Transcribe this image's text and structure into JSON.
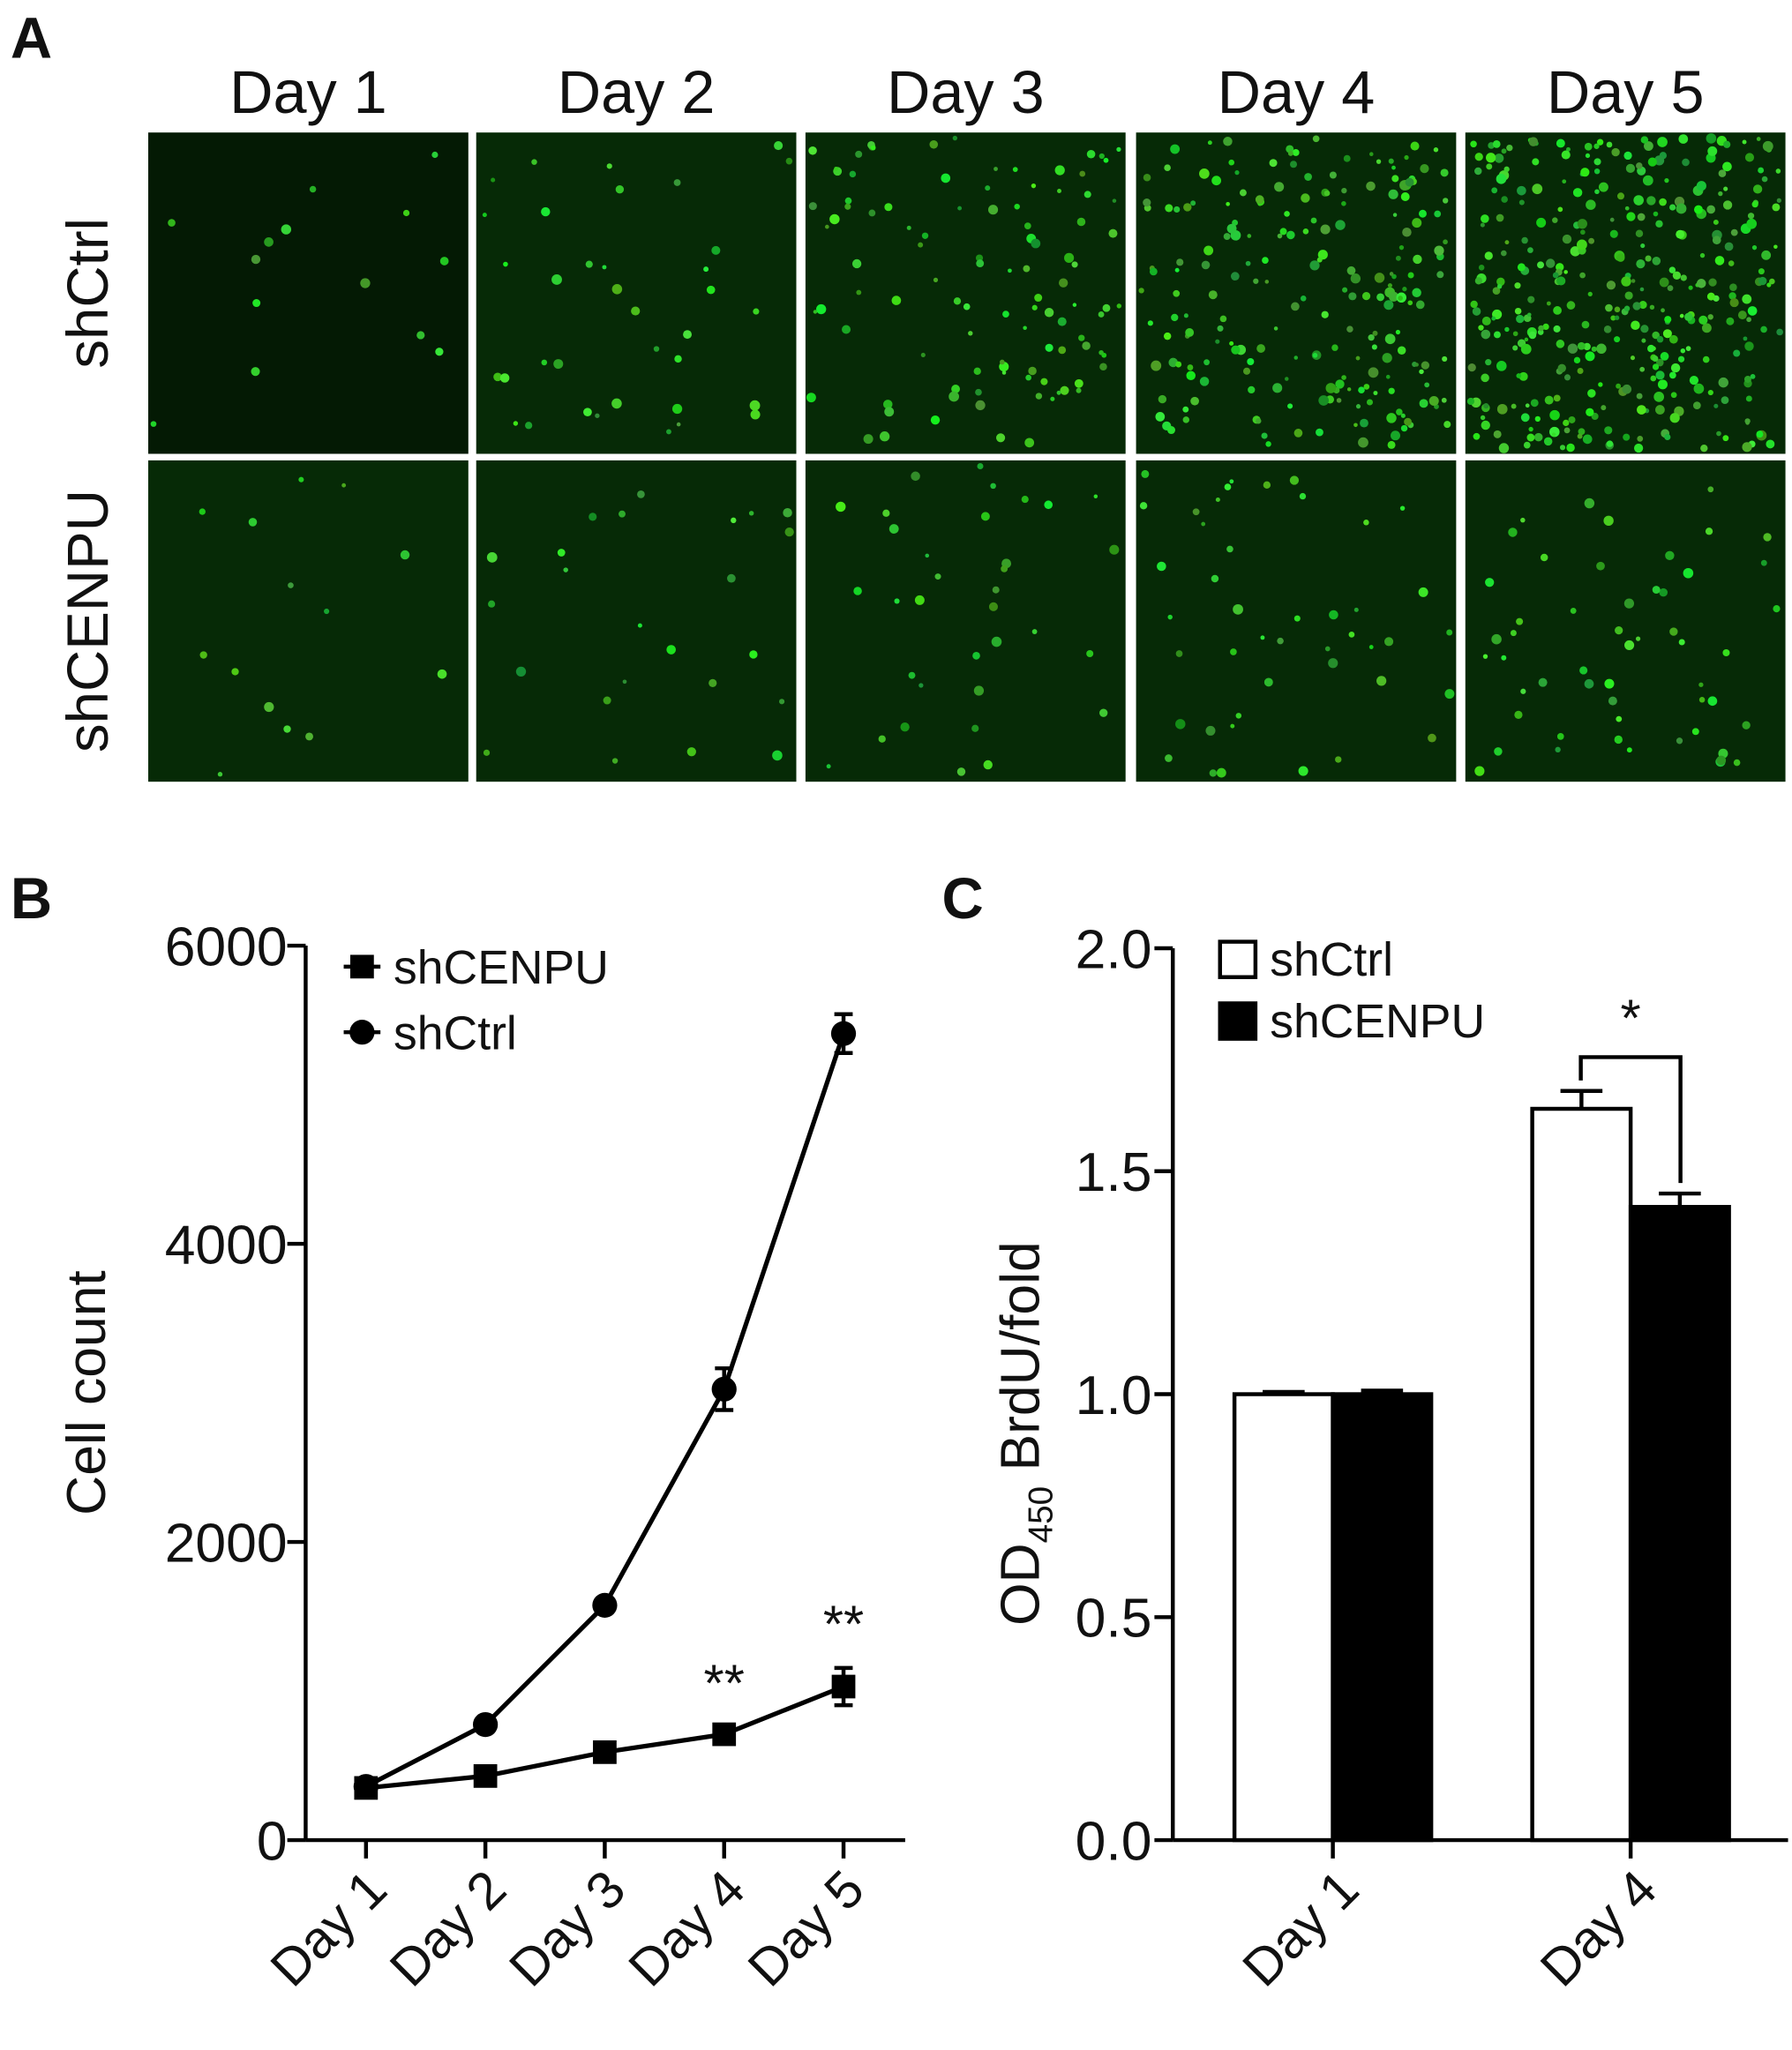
{
  "panel_a": {
    "label": "A",
    "columns": [
      "Day 1",
      "Day 2",
      "Day 3",
      "Day 4",
      "Day 5"
    ],
    "rows": [
      "shCtrl",
      "shCENPU"
    ]
  },
  "chart_data": [
    {
      "type": "line",
      "panel_label": "B",
      "ylabel": "Cell count",
      "categories": [
        "Day 1",
        "Day 2",
        "Day 3",
        "Day 4",
        "Day 5"
      ],
      "series": [
        {
          "name": "shCENPU",
          "color": "#000000",
          "marker": "square",
          "values": [
            350,
            430,
            590,
            710,
            1030
          ],
          "errors": [
            30,
            40,
            40,
            60,
            125
          ]
        },
        {
          "name": "shCtrl",
          "color": "#000000",
          "marker": "circle",
          "values": [
            360,
            775,
            1575,
            3025,
            5410
          ],
          "errors": [
            30,
            40,
            30,
            140,
            130
          ]
        }
      ],
      "annotations": [
        "**",
        "**"
      ],
      "ylim": [
        0,
        6000
      ],
      "yticks": [
        0,
        2000,
        4000,
        6000
      ]
    },
    {
      "type": "bar",
      "panel_label": "C",
      "ylabel": {
        "main": "OD",
        "sub": "450",
        "rest": " BrdU/fold"
      },
      "categories": [
        "Day 1",
        "Day 4"
      ],
      "series": [
        {
          "name": "shCtrl",
          "color": "#ffffff",
          "values": [
            1.0,
            1.64
          ],
          "errors": [
            0.005,
            0.04
          ]
        },
        {
          "name": "shCENPU",
          "color": "#000000",
          "values": [
            1.0,
            1.42
          ],
          "errors": [
            0.008,
            0.03
          ]
        }
      ],
      "annotations": [
        "*"
      ],
      "ylim": [
        0,
        2
      ],
      "yticks": [
        {
          "value": 0,
          "label": "0.0"
        },
        {
          "value": 0.5,
          "label": "0.5"
        },
        {
          "value": 1,
          "label": "1.0"
        },
        {
          "value": 1.5,
          "label": "1.5"
        },
        {
          "value": 2,
          "label": "2.0"
        }
      ]
    }
  ]
}
